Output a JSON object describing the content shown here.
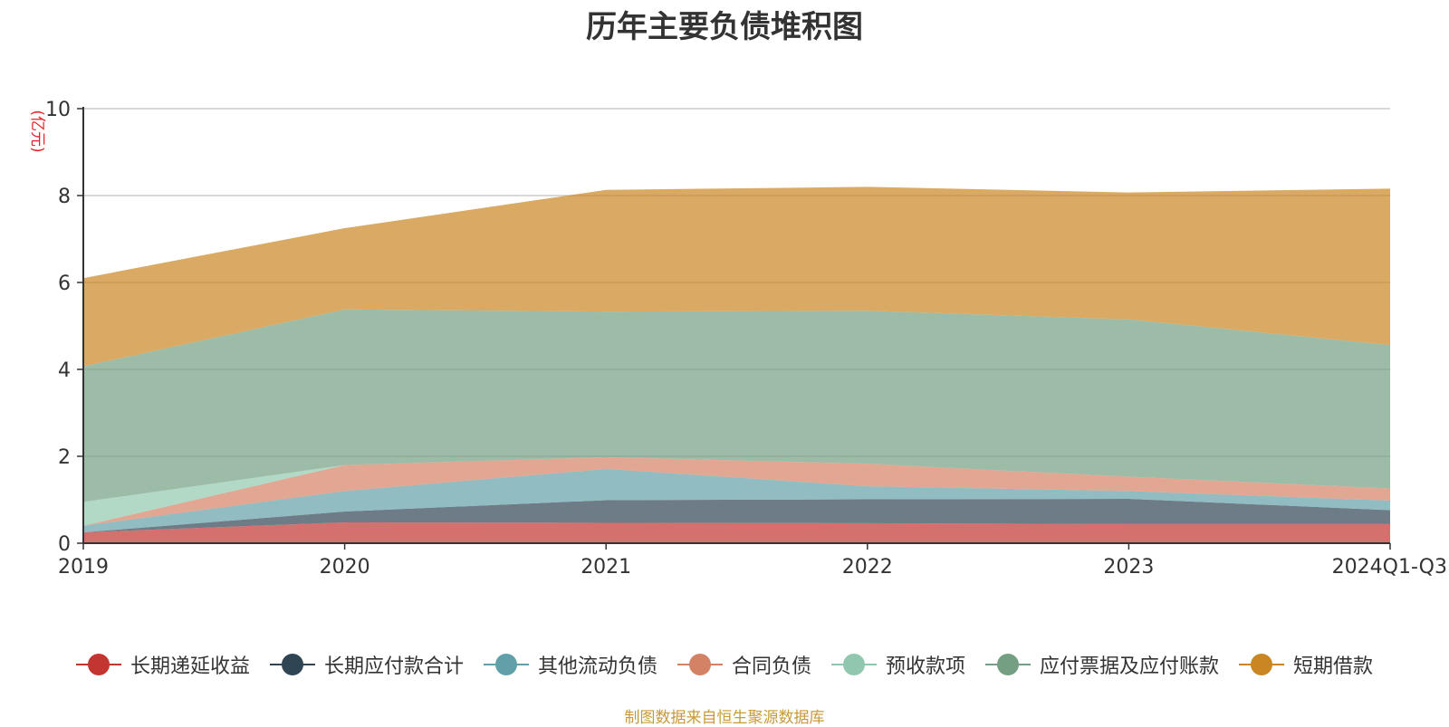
{
  "chart_data": {
    "type": "area",
    "stacked": true,
    "title": "历年主要负债堆积图",
    "ylabel": "(亿元)",
    "xlabel": "",
    "categories": [
      "2019",
      "2020",
      "2021",
      "2022",
      "2023",
      "2024Q1-Q3"
    ],
    "ylim": [
      0,
      10
    ],
    "yticks": [
      0,
      2,
      4,
      6,
      8,
      10
    ],
    "grid": true,
    "legend_position": "bottom",
    "series": [
      {
        "name": "长期递延收益",
        "values": [
          0.25,
          0.48,
          0.47,
          0.46,
          0.44,
          0.44
        ],
        "color": "#c23531"
      },
      {
        "name": "长期应付款合计",
        "values": [
          0.0,
          0.25,
          0.52,
          0.55,
          0.58,
          0.32
        ],
        "color": "#2f4554"
      },
      {
        "name": "其他流动负债",
        "values": [
          0.15,
          0.47,
          0.72,
          0.3,
          0.18,
          0.22
        ],
        "color": "#61a0a8"
      },
      {
        "name": "合同负债",
        "values": [
          0.0,
          0.6,
          0.27,
          0.52,
          0.33,
          0.28
        ],
        "color": "#d48265"
      },
      {
        "name": "预收款项",
        "values": [
          0.55,
          0.0,
          0.0,
          0.0,
          0.0,
          0.0
        ],
        "color": "#91c7ae"
      },
      {
        "name": "应付票据及应付账款",
        "values": [
          3.12,
          3.58,
          3.35,
          3.52,
          3.62,
          3.3
        ],
        "color": "#749f83"
      },
      {
        "name": "短期借款",
        "values": [
          2.03,
          1.87,
          2.8,
          2.85,
          2.92,
          3.6
        ],
        "color": "#ca8622"
      }
    ],
    "source_note": "制图数据来自恒生聚源数据库"
  }
}
